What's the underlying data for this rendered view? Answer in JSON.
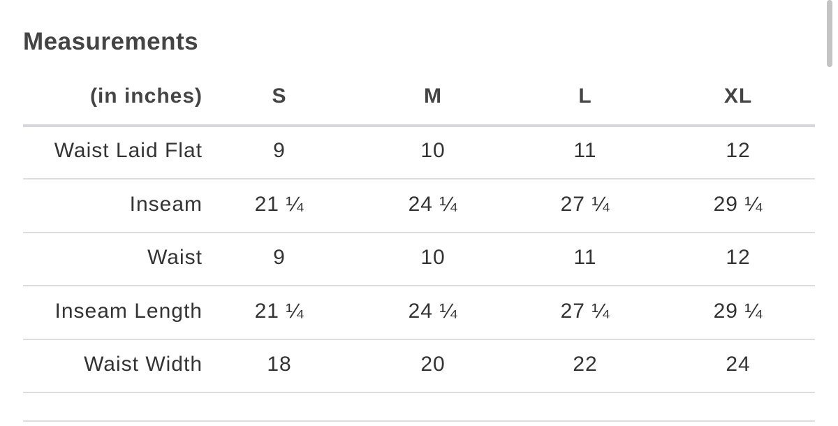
{
  "header": {
    "title": "Measurements"
  },
  "table": {
    "columns": [
      "(in inches)",
      "S",
      "M",
      "L",
      "XL"
    ],
    "rows": [
      [
        "Waist Laid Flat",
        9,
        10,
        11,
        12
      ],
      [
        "Inseam",
        "21 ¼",
        "24 ¼",
        "27 ¼",
        "29 ¼"
      ],
      [
        "Waist",
        9,
        10,
        11,
        12
      ],
      [
        "Inseam Length",
        "21 ¼",
        "24 ¼",
        "27 ¼",
        "29 ¼"
      ],
      [
        "Waist Width",
        18,
        20,
        22,
        24
      ]
    ]
  }
}
